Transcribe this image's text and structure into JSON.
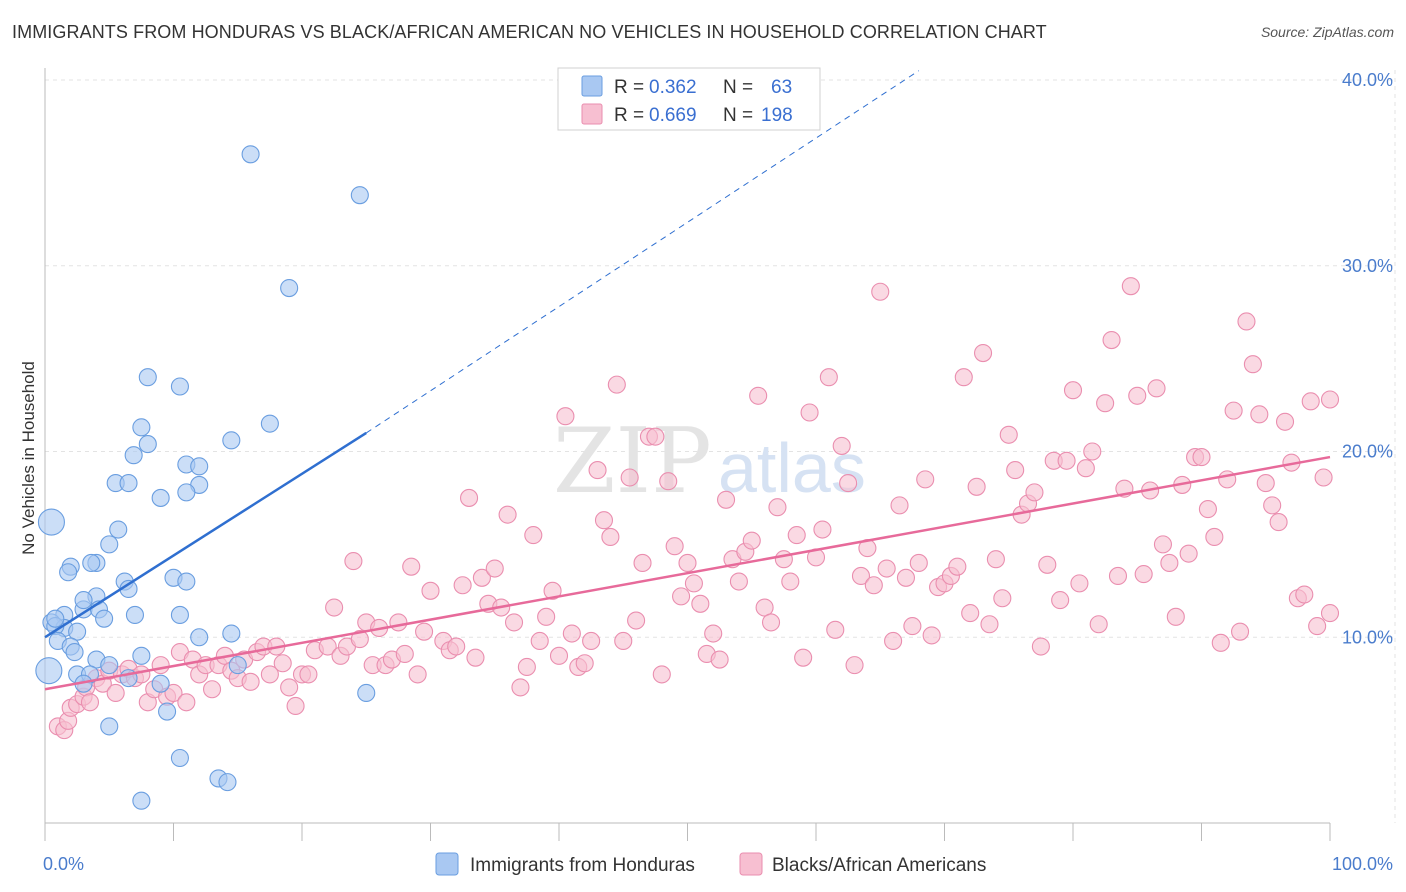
{
  "title": "IMMIGRANTS FROM HONDURAS VS BLACK/AFRICAN AMERICAN NO VEHICLES IN HOUSEHOLD CORRELATION CHART",
  "source": "Source: ZipAtlas.com",
  "watermark": {
    "zip": "ZIP",
    "atlas": "atlas"
  },
  "legend": {
    "r_label": "R =",
    "n_label": "N =",
    "rows": [
      {
        "r": "0.362",
        "n": "63",
        "color": "#a9c8f2",
        "stroke": "#6a9ee0"
      },
      {
        "r": "0.669",
        "n": "198",
        "color": "#f7bfd1",
        "stroke": "#ea8eaf"
      }
    ]
  },
  "colors": {
    "blue_fill": "#a9c8f2",
    "blue_stroke": "#6a9ee0",
    "blue_line": "#2f6fd0",
    "pink_fill": "#f7bfd1",
    "pink_stroke": "#ea8eaf",
    "pink_line": "#e76a9a",
    "tick_text": "#4a7ccc",
    "grid": "#e3e3e3"
  },
  "chart_data": {
    "type": "scatter",
    "title": "IMMIGRANTS FROM HONDURAS VS BLACK/AFRICAN AMERICAN NO VEHICLES IN HOUSEHOLD CORRELATION CHART",
    "xlabel": "",
    "ylabel": "No Vehicles in Household",
    "xlim": [
      0,
      100
    ],
    "ylim": [
      0,
      40
    ],
    "x_tick_labels": [
      "0.0%",
      "100.0%"
    ],
    "y_ticks": [
      10,
      20,
      30,
      40
    ],
    "y_tick_labels": [
      "10.0%",
      "20.0%",
      "30.0%",
      "40.0%"
    ],
    "grid": true,
    "legend_position": "top-center",
    "series": [
      {
        "name": "Immigrants from Honduras",
        "r": 0.362,
        "n": 63,
        "trend": {
          "x": [
            0,
            25
          ],
          "y": [
            10.0,
            21.0
          ],
          "dashed_extension_to": [
            68,
            40.5
          ]
        },
        "points": [
          [
            16.0,
            36.0
          ],
          [
            24.5,
            33.8
          ],
          [
            19.0,
            28.8
          ],
          [
            8.0,
            24.0
          ],
          [
            10.5,
            23.5
          ],
          [
            17.5,
            21.5
          ],
          [
            14.5,
            20.6
          ],
          [
            7.5,
            21.3
          ],
          [
            8.0,
            20.4
          ],
          [
            6.9,
            19.8
          ],
          [
            11.0,
            19.3
          ],
          [
            12.0,
            19.2
          ],
          [
            5.5,
            18.3
          ],
          [
            6.5,
            18.3
          ],
          [
            12.0,
            18.2
          ],
          [
            11.0,
            17.8
          ],
          [
            9.0,
            17.5
          ],
          [
            0.5,
            16.2
          ],
          [
            5.7,
            15.8
          ],
          [
            5.0,
            15.0
          ],
          [
            4.0,
            14.0
          ],
          [
            2.0,
            13.8
          ],
          [
            3.6,
            14.0
          ],
          [
            1.8,
            13.5
          ],
          [
            10.0,
            13.2
          ],
          [
            6.2,
            13.0
          ],
          [
            11.0,
            13.0
          ],
          [
            6.5,
            12.6
          ],
          [
            4.0,
            12.2
          ],
          [
            3.0,
            11.5
          ],
          [
            4.2,
            11.5
          ],
          [
            1.5,
            11.2
          ],
          [
            7.0,
            11.2
          ],
          [
            10.5,
            11.2
          ],
          [
            4.6,
            11.0
          ],
          [
            0.5,
            10.8
          ],
          [
            1.5,
            10.5
          ],
          [
            0.8,
            10.6
          ],
          [
            2.5,
            10.3
          ],
          [
            14.5,
            10.2
          ],
          [
            12.0,
            10.0
          ],
          [
            1.0,
            9.8
          ],
          [
            2.0,
            9.5
          ],
          [
            2.3,
            9.2
          ],
          [
            7.5,
            9.0
          ],
          [
            4.0,
            8.8
          ],
          [
            5.0,
            8.5
          ],
          [
            15.0,
            8.5
          ],
          [
            0.3,
            8.2
          ],
          [
            2.5,
            8.0
          ],
          [
            3.5,
            8.0
          ],
          [
            6.5,
            7.8
          ],
          [
            3.0,
            7.5
          ],
          [
            9.0,
            7.5
          ],
          [
            25.0,
            7.0
          ],
          [
            9.5,
            6.0
          ],
          [
            5.0,
            5.2
          ],
          [
            10.5,
            3.5
          ],
          [
            13.5,
            2.4
          ],
          [
            14.2,
            2.2
          ],
          [
            7.5,
            1.2
          ],
          [
            0.8,
            11.0
          ],
          [
            3.0,
            12.0
          ]
        ],
        "sizes_note": "two points drawn larger",
        "large_points": [
          [
            0.5,
            16.2
          ],
          [
            0.3,
            8.2
          ]
        ]
      },
      {
        "name": "Blacks/African Americans",
        "r": 0.669,
        "n": 198,
        "trend": {
          "x": [
            0,
            100
          ],
          "y": [
            7.2,
            19.7
          ]
        },
        "points": [
          [
            1.0,
            5.2
          ],
          [
            1.5,
            5.0
          ],
          [
            1.8,
            5.5
          ],
          [
            2.0,
            6.2
          ],
          [
            2.5,
            6.4
          ],
          [
            3.0,
            6.8
          ],
          [
            3.2,
            7.3
          ],
          [
            3.5,
            6.5
          ],
          [
            4.0,
            7.8
          ],
          [
            4.5,
            7.5
          ],
          [
            5.0,
            8.2
          ],
          [
            5.5,
            7.0
          ],
          [
            6.0,
            8.0
          ],
          [
            6.5,
            8.3
          ],
          [
            7.0,
            7.8
          ],
          [
            7.5,
            8.0
          ],
          [
            8.0,
            6.5
          ],
          [
            8.5,
            7.2
          ],
          [
            9.0,
            8.5
          ],
          [
            9.5,
            6.8
          ],
          [
            10.0,
            7.0
          ],
          [
            10.5,
            9.2
          ],
          [
            11.0,
            6.5
          ],
          [
            11.5,
            8.8
          ],
          [
            12.0,
            8.0
          ],
          [
            12.5,
            8.5
          ],
          [
            13.0,
            7.2
          ],
          [
            13.5,
            8.5
          ],
          [
            14.0,
            9.0
          ],
          [
            14.5,
            8.2
          ],
          [
            15.0,
            7.8
          ],
          [
            15.5,
            8.8
          ],
          [
            16.0,
            7.6
          ],
          [
            16.5,
            9.2
          ],
          [
            17.0,
            9.5
          ],
          [
            17.5,
            8.0
          ],
          [
            18.0,
            9.5
          ],
          [
            18.5,
            8.6
          ],
          [
            19.0,
            7.3
          ],
          [
            19.5,
            6.3
          ],
          [
            20.0,
            8.0
          ],
          [
            20.5,
            8.0
          ],
          [
            21.0,
            9.3
          ],
          [
            22.0,
            9.5
          ],
          [
            22.5,
            11.6
          ],
          [
            23.0,
            9.0
          ],
          [
            23.5,
            9.5
          ],
          [
            24.0,
            14.1
          ],
          [
            24.5,
            9.9
          ],
          [
            25.0,
            10.8
          ],
          [
            25.5,
            8.5
          ],
          [
            26.0,
            10.5
          ],
          [
            26.5,
            8.5
          ],
          [
            27.0,
            8.8
          ],
          [
            27.5,
            10.8
          ],
          [
            28.0,
            9.1
          ],
          [
            28.5,
            13.8
          ],
          [
            29.0,
            8.0
          ],
          [
            29.5,
            10.3
          ],
          [
            30.0,
            12.5
          ],
          [
            31.0,
            9.8
          ],
          [
            31.5,
            9.3
          ],
          [
            32.0,
            9.5
          ],
          [
            32.5,
            12.8
          ],
          [
            33.0,
            17.5
          ],
          [
            33.5,
            8.9
          ],
          [
            34.0,
            13.2
          ],
          [
            34.5,
            11.8
          ],
          [
            35.0,
            13.7
          ],
          [
            35.5,
            11.6
          ],
          [
            36.0,
            16.6
          ],
          [
            36.5,
            10.8
          ],
          [
            37.0,
            7.3
          ],
          [
            37.5,
            8.4
          ],
          [
            38.0,
            15.5
          ],
          [
            38.5,
            9.8
          ],
          [
            39.0,
            11.1
          ],
          [
            39.5,
            12.5
          ],
          [
            40.0,
            9.0
          ],
          [
            40.5,
            21.9
          ],
          [
            41.0,
            10.2
          ],
          [
            41.5,
            8.4
          ],
          [
            42.0,
            8.6
          ],
          [
            42.5,
            9.8
          ],
          [
            43.0,
            19.0
          ],
          [
            43.5,
            16.3
          ],
          [
            44.0,
            15.4
          ],
          [
            44.5,
            23.6
          ],
          [
            45.0,
            9.8
          ],
          [
            45.5,
            18.6
          ],
          [
            46.0,
            10.9
          ],
          [
            46.5,
            14.0
          ],
          [
            47.0,
            20.8
          ],
          [
            47.5,
            20.8
          ],
          [
            48.0,
            8.0
          ],
          [
            48.5,
            18.4
          ],
          [
            49.0,
            14.9
          ],
          [
            49.5,
            12.2
          ],
          [
            50.0,
            14.0
          ],
          [
            50.5,
            12.9
          ],
          [
            51.0,
            11.8
          ],
          [
            51.5,
            9.1
          ],
          [
            52.0,
            10.2
          ],
          [
            52.5,
            8.8
          ],
          [
            53.0,
            17.4
          ],
          [
            53.5,
            14.2
          ],
          [
            54.0,
            13.0
          ],
          [
            54.5,
            14.6
          ],
          [
            55.0,
            15.2
          ],
          [
            55.5,
            23.0
          ],
          [
            56.0,
            11.6
          ],
          [
            56.5,
            10.8
          ],
          [
            57.0,
            17.0
          ],
          [
            57.5,
            14.2
          ],
          [
            58.0,
            13.0
          ],
          [
            58.5,
            15.5
          ],
          [
            59.0,
            8.9
          ],
          [
            59.5,
            22.1
          ],
          [
            60.0,
            14.3
          ],
          [
            60.5,
            15.8
          ],
          [
            61.0,
            24.0
          ],
          [
            61.5,
            10.4
          ],
          [
            62.0,
            20.3
          ],
          [
            62.5,
            18.3
          ],
          [
            63.0,
            8.5
          ],
          [
            63.5,
            13.3
          ],
          [
            64.0,
            14.8
          ],
          [
            64.5,
            12.8
          ],
          [
            65.0,
            28.6
          ],
          [
            65.5,
            13.7
          ],
          [
            66.0,
            9.8
          ],
          [
            66.5,
            17.1
          ],
          [
            67.0,
            13.2
          ],
          [
            67.5,
            10.6
          ],
          [
            68.0,
            14.0
          ],
          [
            68.5,
            18.5
          ],
          [
            69.0,
            10.1
          ],
          [
            69.5,
            12.7
          ],
          [
            70.0,
            12.9
          ],
          [
            70.5,
            13.3
          ],
          [
            71.0,
            13.8
          ],
          [
            71.5,
            24.0
          ],
          [
            72.0,
            11.3
          ],
          [
            72.5,
            18.1
          ],
          [
            73.0,
            25.3
          ],
          [
            73.5,
            10.7
          ],
          [
            74.0,
            14.2
          ],
          [
            74.5,
            12.1
          ],
          [
            75.0,
            20.9
          ],
          [
            75.5,
            19.0
          ],
          [
            76.0,
            16.6
          ],
          [
            76.5,
            17.2
          ],
          [
            77.0,
            17.8
          ],
          [
            77.5,
            9.5
          ],
          [
            78.0,
            13.9
          ],
          [
            78.5,
            19.5
          ],
          [
            79.0,
            12.0
          ],
          [
            79.5,
            19.5
          ],
          [
            80.0,
            23.3
          ],
          [
            80.5,
            12.9
          ],
          [
            81.0,
            19.1
          ],
          [
            81.5,
            20.0
          ],
          [
            82.0,
            10.7
          ],
          [
            82.5,
            22.6
          ],
          [
            83.0,
            26.0
          ],
          [
            83.5,
            13.3
          ],
          [
            84.0,
            18.0
          ],
          [
            84.5,
            28.9
          ],
          [
            85.0,
            23.0
          ],
          [
            85.5,
            13.4
          ],
          [
            86.0,
            17.9
          ],
          [
            86.5,
            23.4
          ],
          [
            87.0,
            15.0
          ],
          [
            87.5,
            14.0
          ],
          [
            88.0,
            11.1
          ],
          [
            88.5,
            18.2
          ],
          [
            89.0,
            14.5
          ],
          [
            89.5,
            19.7
          ],
          [
            90.0,
            19.7
          ],
          [
            90.5,
            16.9
          ],
          [
            91.0,
            15.4
          ],
          [
            91.5,
            9.7
          ],
          [
            92.0,
            18.5
          ],
          [
            92.5,
            22.2
          ],
          [
            93.0,
            10.3
          ],
          [
            93.5,
            27.0
          ],
          [
            94.0,
            24.7
          ],
          [
            94.5,
            22.0
          ],
          [
            95.0,
            18.3
          ],
          [
            95.5,
            17.1
          ],
          [
            96.0,
            16.2
          ],
          [
            96.5,
            21.6
          ],
          [
            97.0,
            19.4
          ],
          [
            97.5,
            12.1
          ],
          [
            98.0,
            12.3
          ],
          [
            98.5,
            22.7
          ],
          [
            99.0,
            10.6
          ],
          [
            99.5,
            18.6
          ],
          [
            100.0,
            22.8
          ],
          [
            100.0,
            11.3
          ]
        ]
      }
    ]
  },
  "bottom_legend": [
    {
      "label": "Immigrants from Honduras",
      "color": "#a9c8f2",
      "stroke": "#6a9ee0"
    },
    {
      "label": "Blacks/African Americans",
      "color": "#f7bfd1",
      "stroke": "#ea8eaf"
    }
  ]
}
